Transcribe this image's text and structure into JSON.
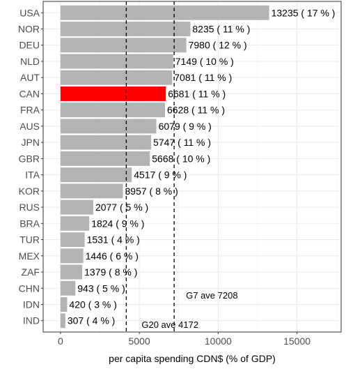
{
  "chart_data": {
    "type": "bar",
    "orientation": "horizontal",
    "xlabel": "per capita spending CDN$ (% of GDP)",
    "ylabel": "",
    "xlim": [
      -1100,
      17800
    ],
    "x_ticks": [
      0,
      5000,
      10000,
      15000
    ],
    "grid": true,
    "categories": [
      "USA",
      "NOR",
      "DEU",
      "NLD",
      "AUT",
      "CAN",
      "FRA",
      "AUS",
      "JPN",
      "GBR",
      "ITA",
      "KOR",
      "RUS",
      "BRA",
      "TUR",
      "MEX",
      "ZAF",
      "CHN",
      "IDN",
      "IND"
    ],
    "values": [
      13235,
      8235,
      7980,
      7149,
      7081,
      6681,
      6628,
      6079,
      5747,
      5668,
      4517,
      3957,
      2077,
      1824,
      1531,
      1446,
      1379,
      943,
      420,
      307
    ],
    "gdp_share_percent": [
      17,
      11,
      12,
      10,
      11,
      11,
      11,
      9,
      11,
      10,
      9,
      8,
      5,
      9,
      4,
      6,
      8,
      5,
      3,
      4
    ],
    "value_labels": [
      "13235 ( 17 % )",
      "8235 ( 11 % )",
      "7980 ( 12 % )",
      "7149 ( 10 % )",
      "7081 ( 11 % )",
      "6681 ( 11 % )",
      "6628 ( 11 % )",
      "6079 ( 9 % )",
      "5747 ( 11 % )",
      "5668 ( 10 % )",
      "4517 ( 9 % )",
      "3957 ( 8 % )",
      "2077 ( 5 % )",
      "1824 ( 9 % )",
      "1531 ( 4 % )",
      "1446 ( 6 % )",
      "1379 ( 8 % )",
      "943 ( 5 % )",
      "420 ( 3 % )",
      "307 ( 4 % )"
    ],
    "highlight_category": "CAN",
    "reference_lines": [
      {
        "label": "G7 ave 7208",
        "value": 7208
      },
      {
        "label": "G20 ave 4172",
        "value": 4172
      }
    ],
    "colors": {
      "bar": "#b3b3b3",
      "highlight": "#ff0000",
      "reference_line": "#000000",
      "grid": "#ebebeb",
      "panel_border": "#333333"
    }
  }
}
